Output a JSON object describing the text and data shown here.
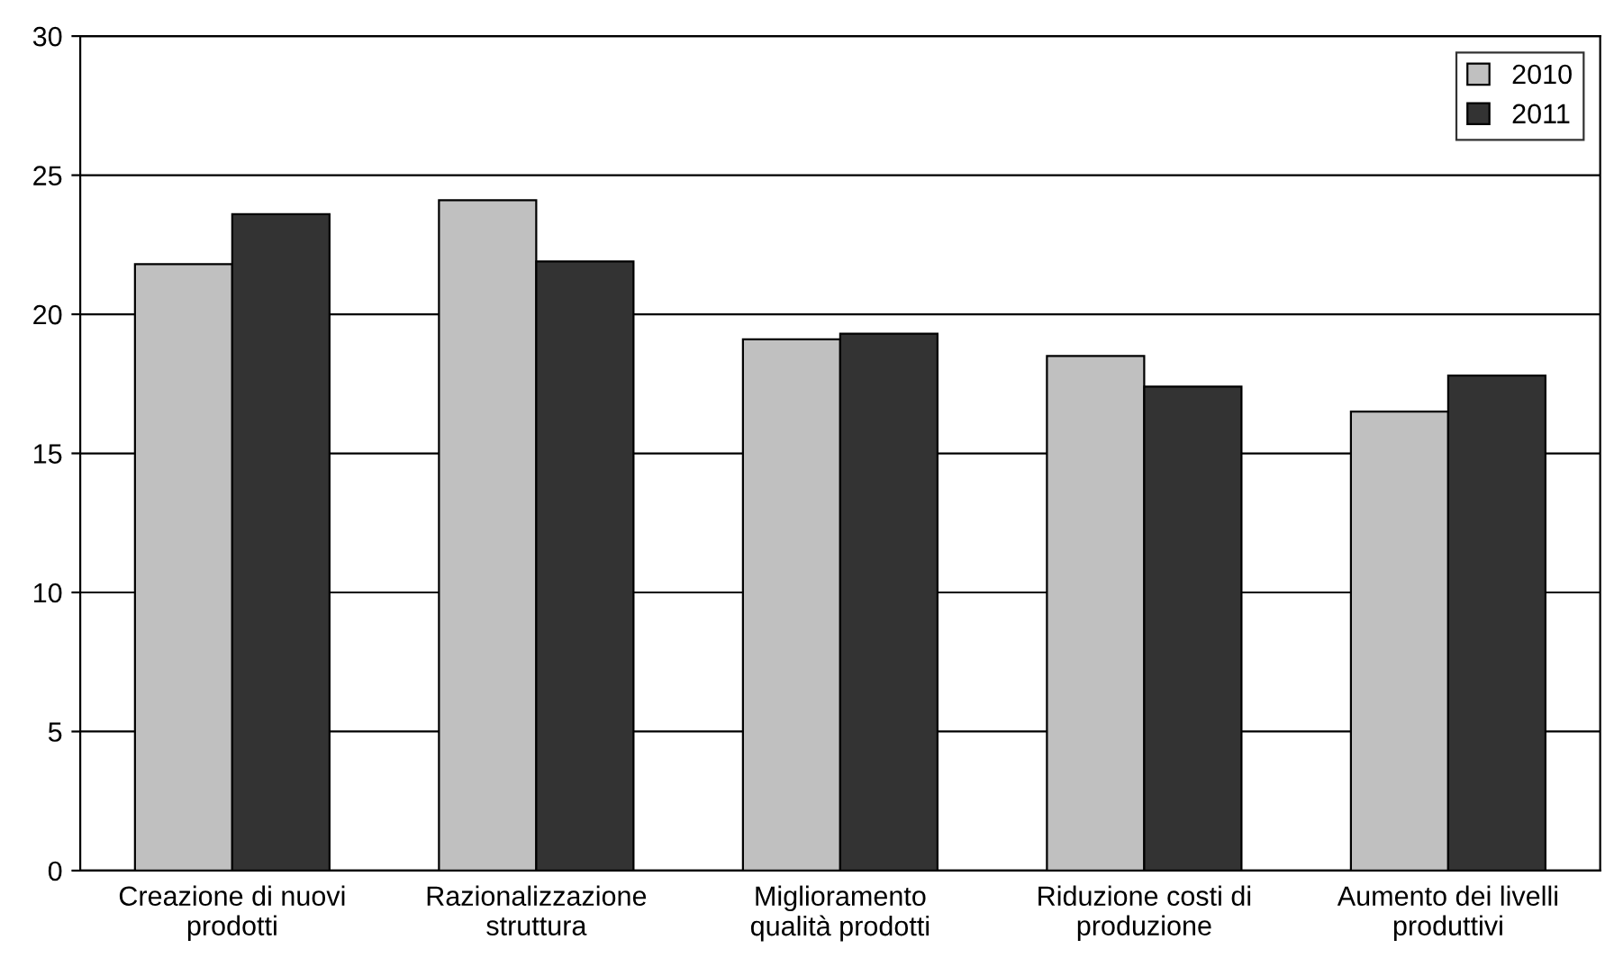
{
  "chart_data": {
    "type": "bar",
    "categories": [
      "Creazione di nuovi\nprodotti",
      "Razionalizzazione\nstruttura",
      "Miglioramento\nqualità prodotti",
      "Riduzione costi di\nproduzione",
      "Aumento dei livelli\nproduttivi"
    ],
    "series": [
      {
        "name": "2010",
        "color": "#c0c0c0",
        "values": [
          21.8,
          24.1,
          19.1,
          18.5,
          16.5
        ]
      },
      {
        "name": "2011",
        "color": "#333333",
        "values": [
          23.6,
          21.9,
          19.3,
          17.4,
          17.8
        ]
      }
    ],
    "ylim": [
      0,
      30
    ],
    "yticks": [
      0,
      5,
      10,
      15,
      20,
      25,
      30
    ],
    "grid": "y",
    "legend": "top right"
  }
}
